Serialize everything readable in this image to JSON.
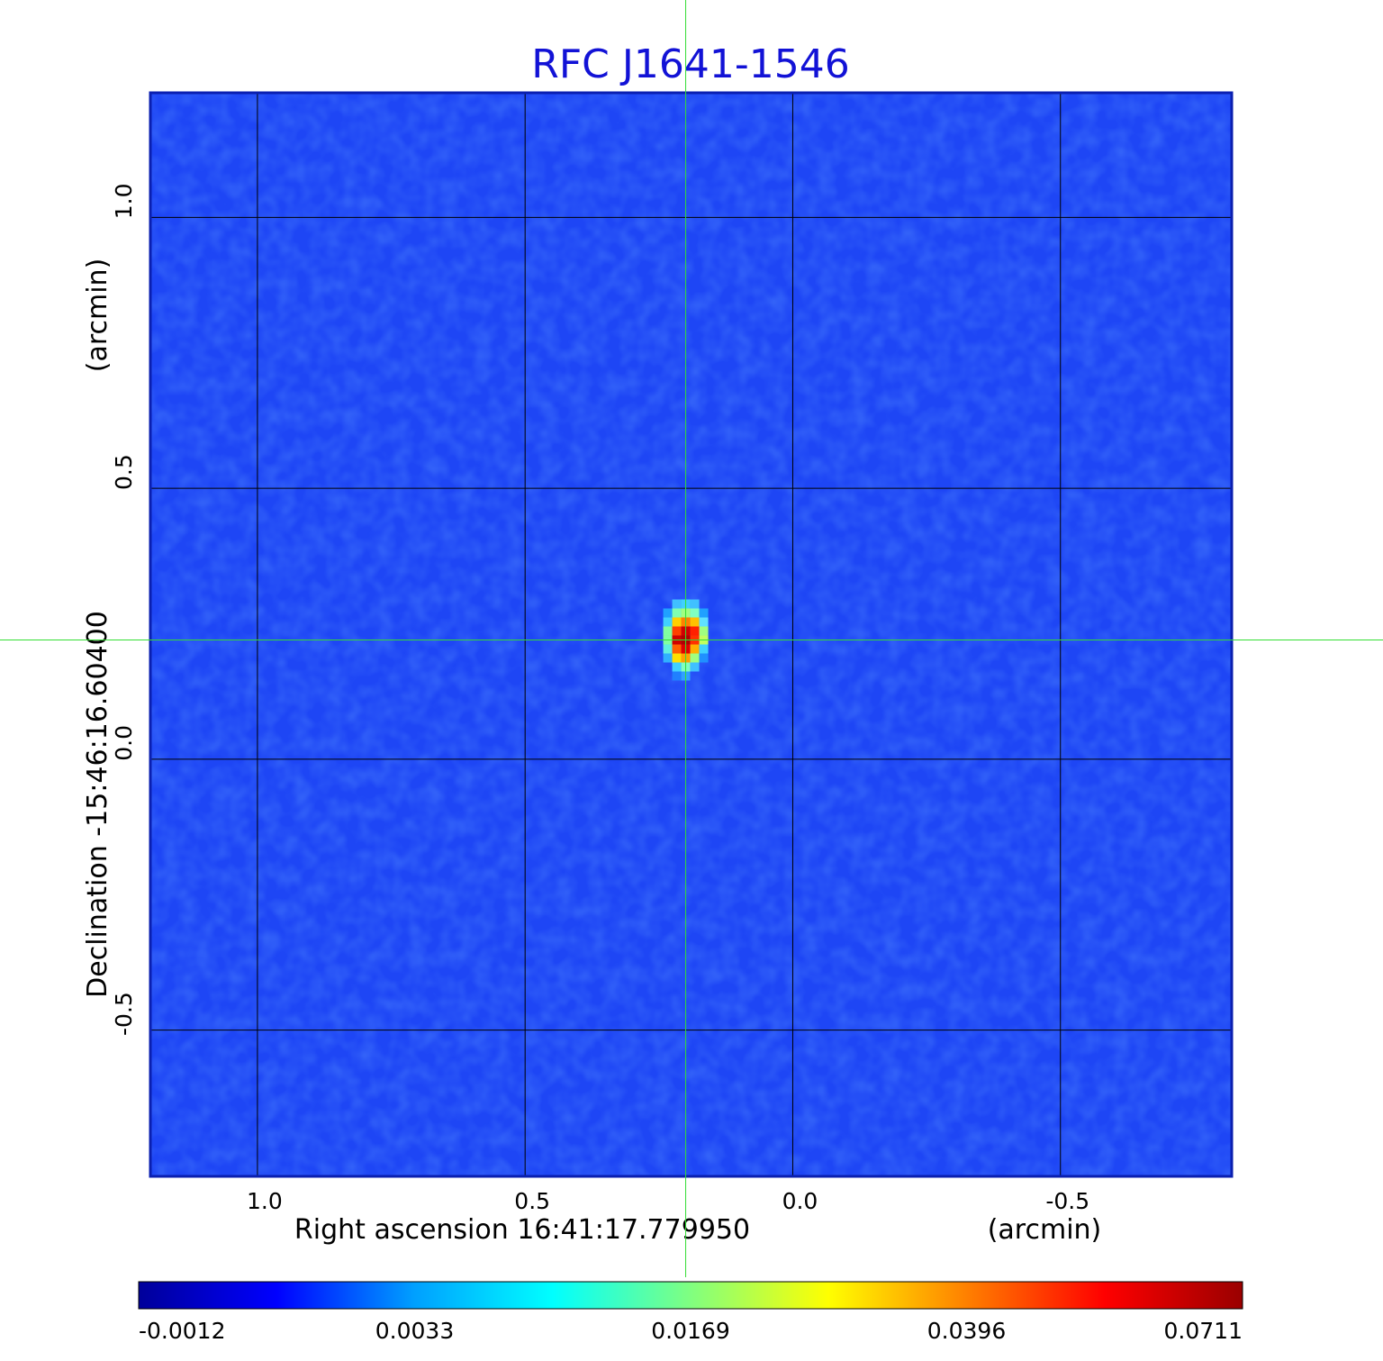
{
  "chart_data": {
    "type": "heatmap",
    "title": "RFC J1641-1546",
    "title_color": "#1212d6",
    "xlabel": "Right ascension  16:41:17.779950",
    "xunit": "(arcmin)",
    "ylabel": "Declination  -15:46:16.60400",
    "yunit": "(arcmin)",
    "x_ticks": [
      1.0,
      0.5,
      0.0,
      -0.5
    ],
    "x_tick_labels": [
      "1.0",
      "0.5",
      "0.0",
      "-0.5"
    ],
    "y_ticks": [
      1.0,
      0.5,
      0.0,
      -0.5
    ],
    "y_tick_labels": [
      "1.0",
      "0.5",
      "0.0",
      "-0.5"
    ],
    "xlim": [
      1.2,
      -0.82
    ],
    "ylim": [
      -0.77,
      1.23
    ],
    "grid": true,
    "crosshair": {
      "x": 0.2,
      "y": 0.22,
      "color": "#33dd33"
    },
    "source_peak": {
      "x": 0.2,
      "y": 0.22,
      "value": 0.0711
    },
    "background_color": "#1e46f5",
    "colorbar": {
      "tick_labels": [
        "-0.0012",
        "0.0033",
        "0.0169",
        "0.0396",
        "0.0711"
      ],
      "colors": [
        "#00009a",
        "#0000ff",
        "#00a0ff",
        "#00ffff",
        "#80ff80",
        "#ffff00",
        "#ff8000",
        "#ff0000",
        "#9a0000"
      ]
    }
  }
}
